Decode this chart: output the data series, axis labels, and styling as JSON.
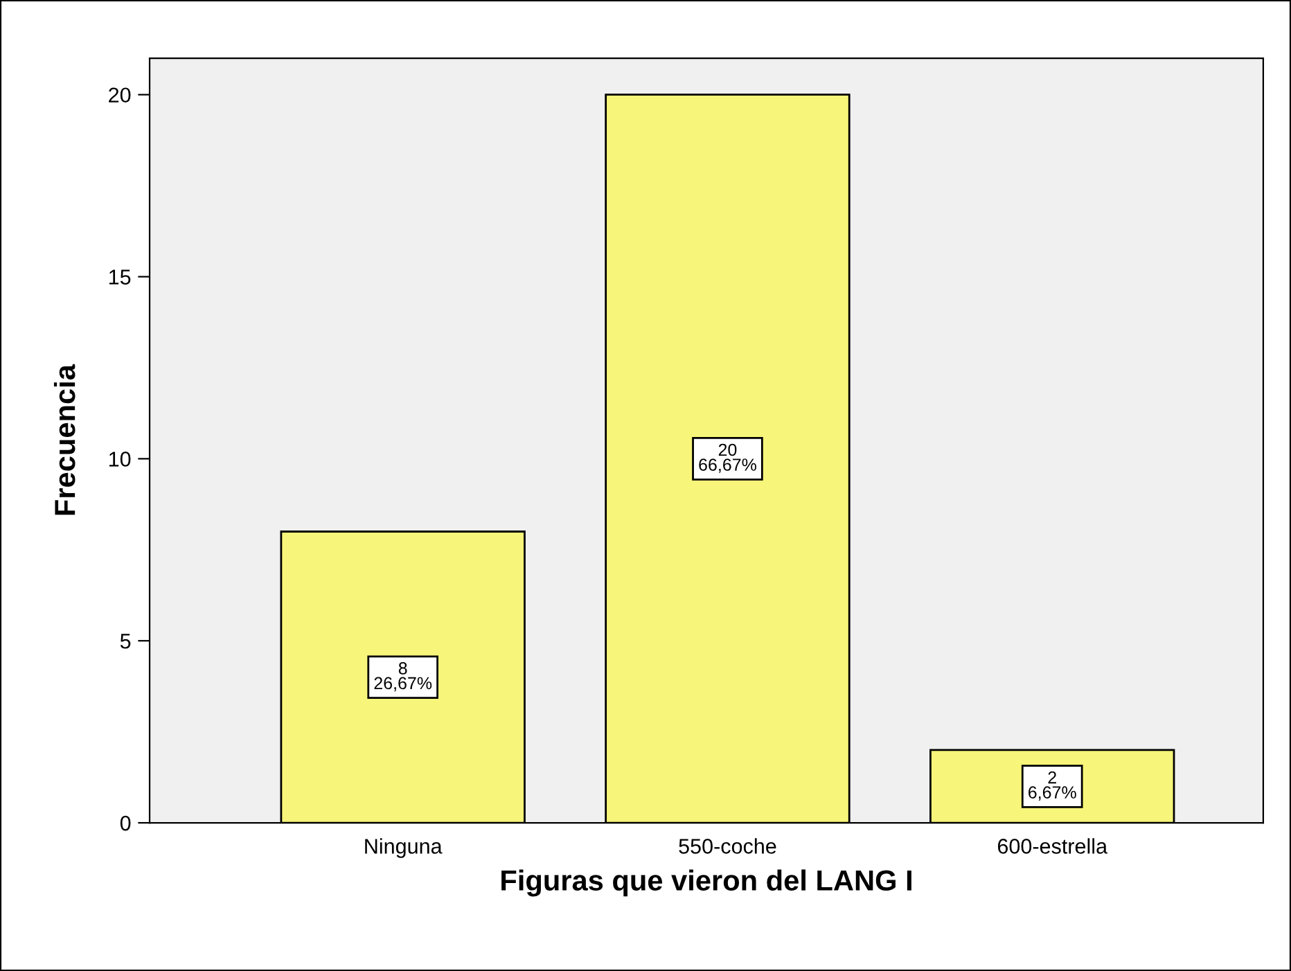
{
  "chart_data": {
    "type": "bar",
    "xlabel": "Figuras que vieron del LANG I",
    "ylabel": "Frecuencia",
    "categories": [
      "Ninguna",
      "550-coche",
      "600-estrella"
    ],
    "values": [
      8,
      20,
      2
    ],
    "value_labels": [
      "8\n26,67%",
      "20\n66,67%",
      "2\n6,67%"
    ],
    "color": "#f7f57a",
    "ylim": [
      0,
      21
    ],
    "yticks": [
      0,
      5,
      10,
      15,
      20
    ],
    "grid": false
  }
}
